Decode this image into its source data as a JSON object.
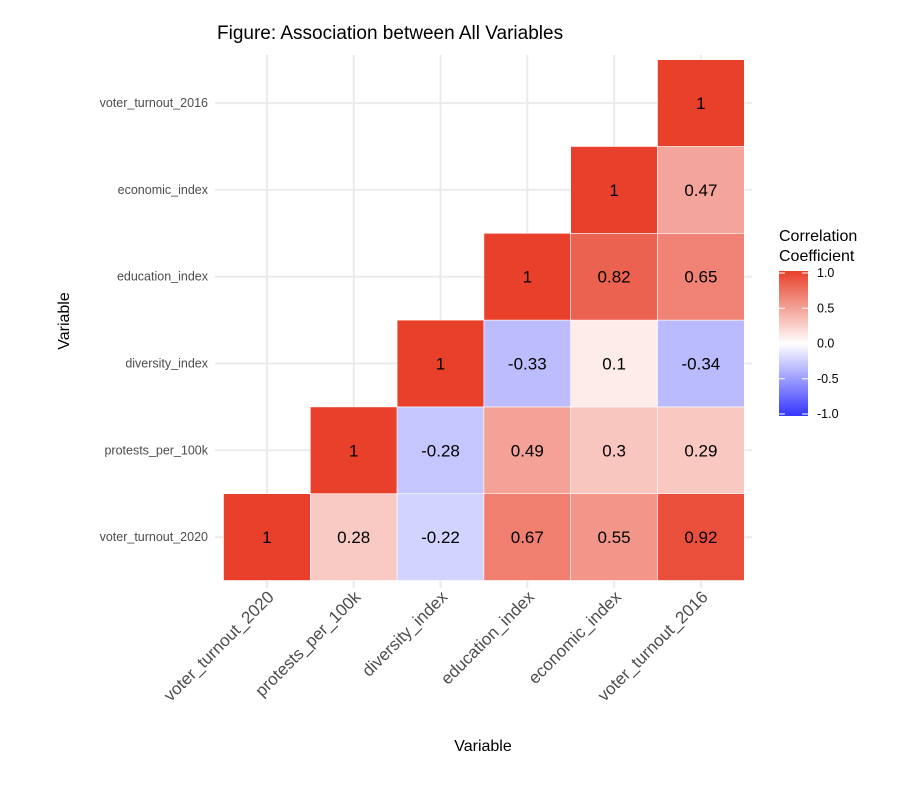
{
  "chart_data": {
    "type": "heatmap",
    "title": "Figure: Association between All Variables",
    "xlabel": "Variable",
    "ylabel": "Variable",
    "variables": [
      "voter_turnout_2020",
      "protests_per_100k",
      "diversity_index",
      "education_index",
      "economic_index",
      "voter_turnout_2016"
    ],
    "cells": [
      {
        "x": "voter_turnout_2020",
        "y": "voter_turnout_2020",
        "value": 1
      },
      {
        "x": "protests_per_100k",
        "y": "voter_turnout_2020",
        "value": 0.28
      },
      {
        "x": "diversity_index",
        "y": "voter_turnout_2020",
        "value": -0.22
      },
      {
        "x": "education_index",
        "y": "voter_turnout_2020",
        "value": 0.67
      },
      {
        "x": "economic_index",
        "y": "voter_turnout_2020",
        "value": 0.55
      },
      {
        "x": "voter_turnout_2016",
        "y": "voter_turnout_2020",
        "value": 0.92
      },
      {
        "x": "protests_per_100k",
        "y": "protests_per_100k",
        "value": 1
      },
      {
        "x": "diversity_index",
        "y": "protests_per_100k",
        "value": -0.28
      },
      {
        "x": "education_index",
        "y": "protests_per_100k",
        "value": 0.49
      },
      {
        "x": "economic_index",
        "y": "protests_per_100k",
        "value": 0.3
      },
      {
        "x": "voter_turnout_2016",
        "y": "protests_per_100k",
        "value": 0.29
      },
      {
        "x": "diversity_index",
        "y": "diversity_index",
        "value": 1
      },
      {
        "x": "education_index",
        "y": "diversity_index",
        "value": -0.33
      },
      {
        "x": "economic_index",
        "y": "diversity_index",
        "value": 0.1
      },
      {
        "x": "voter_turnout_2016",
        "y": "diversity_index",
        "value": -0.34
      },
      {
        "x": "education_index",
        "y": "education_index",
        "value": 1
      },
      {
        "x": "economic_index",
        "y": "education_index",
        "value": 0.82
      },
      {
        "x": "voter_turnout_2016",
        "y": "education_index",
        "value": 0.65
      },
      {
        "x": "economic_index",
        "y": "economic_index",
        "value": 1
      },
      {
        "x": "voter_turnout_2016",
        "y": "economic_index",
        "value": 0.47
      },
      {
        "x": "voter_turnout_2016",
        "y": "voter_turnout_2016",
        "value": 1
      }
    ],
    "legend": {
      "title_lines": [
        "Correlation",
        "Coefficient"
      ],
      "placement": "right",
      "ticks": [
        "1.0",
        "0.5",
        "0.0",
        "-0.5",
        "-1.0"
      ],
      "range": [
        -1,
        1
      ],
      "colors": {
        "low": "#3535FF",
        "mid": "#FFFFFF",
        "high": "#E8402A"
      }
    },
    "grid": true
  }
}
